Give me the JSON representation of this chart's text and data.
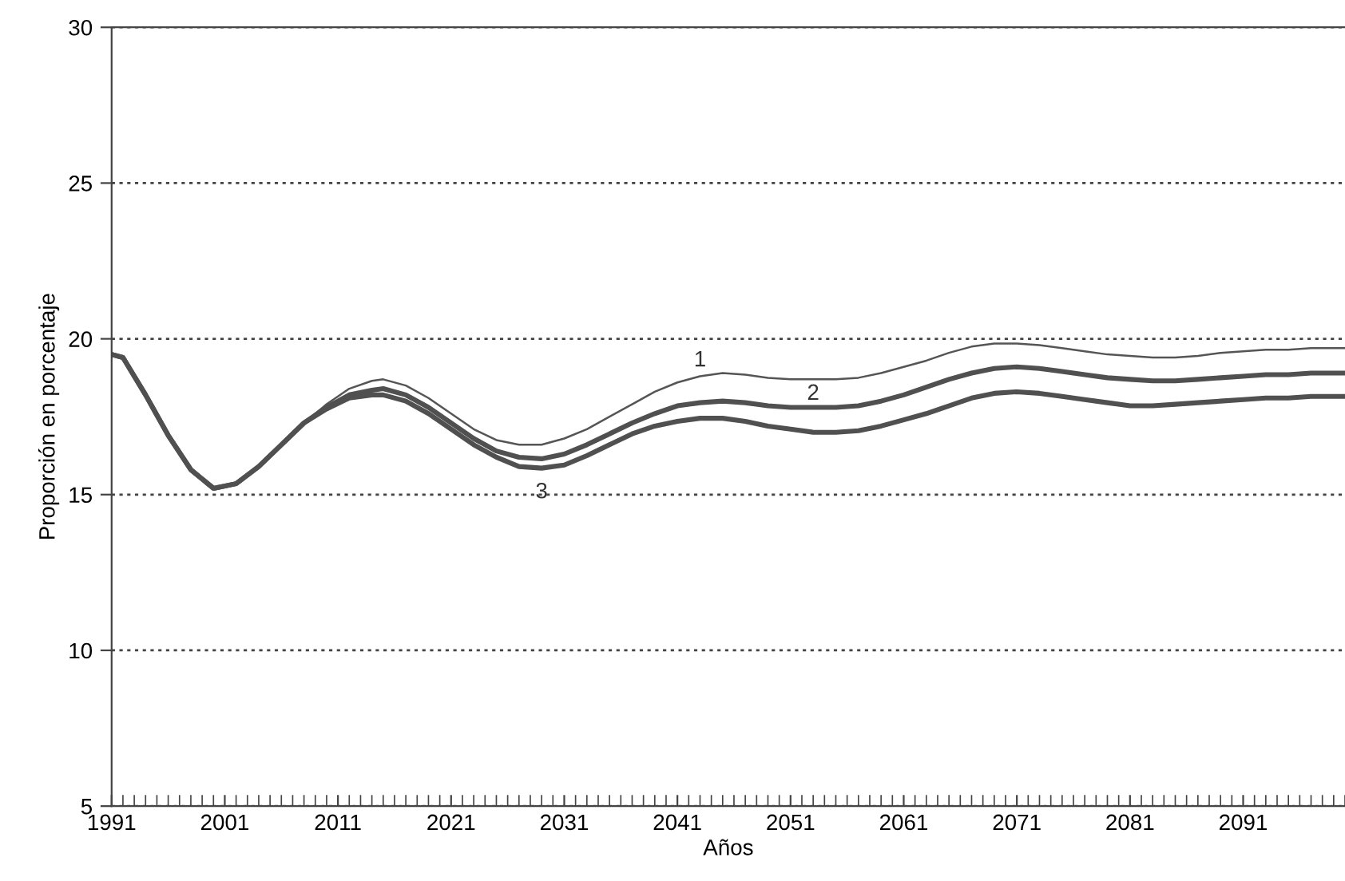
{
  "chart_data": {
    "type": "line",
    "xlabel": "Años",
    "ylabel": "Proporción en porcentaje",
    "x": [
      1991,
      1992,
      1994,
      1996,
      1998,
      2000,
      2002,
      2004,
      2006,
      2008,
      2010,
      2012,
      2014,
      2015,
      2017,
      2019,
      2021,
      2023,
      2025,
      2027,
      2029,
      2031,
      2033,
      2035,
      2037,
      2039,
      2041,
      2043,
      2045,
      2047,
      2049,
      2051,
      2053,
      2055,
      2057,
      2059,
      2061,
      2063,
      2065,
      2067,
      2069,
      2071,
      2073,
      2075,
      2077,
      2079,
      2081,
      2083,
      2085,
      2087,
      2089,
      2091,
      2093,
      2095,
      2097,
      2099,
      2100
    ],
    "series": [
      {
        "name": "1",
        "color": "#555555",
        "values": [
          19.5,
          19.4,
          18.2,
          16.9,
          15.8,
          15.2,
          15.35,
          15.9,
          16.6,
          17.3,
          17.9,
          18.4,
          18.65,
          18.7,
          18.5,
          18.1,
          17.6,
          17.1,
          16.75,
          16.6,
          16.6,
          16.8,
          17.1,
          17.5,
          17.9,
          18.3,
          18.6,
          18.8,
          18.9,
          18.85,
          18.75,
          18.7,
          18.7,
          18.7,
          18.75,
          18.9,
          19.1,
          19.3,
          19.55,
          19.75,
          19.85,
          19.85,
          19.8,
          19.7,
          19.6,
          19.5,
          19.45,
          19.4,
          19.4,
          19.45,
          19.55,
          19.6,
          19.65,
          19.65,
          19.7,
          19.7,
          19.7
        ]
      },
      {
        "name": "2",
        "color": "#505050",
        "values": [
          19.5,
          19.4,
          18.2,
          16.9,
          15.8,
          15.2,
          15.35,
          15.9,
          16.6,
          17.3,
          17.8,
          18.2,
          18.35,
          18.4,
          18.2,
          17.8,
          17.3,
          16.8,
          16.4,
          16.2,
          16.15,
          16.3,
          16.6,
          16.95,
          17.3,
          17.6,
          17.85,
          17.95,
          18.0,
          17.95,
          17.85,
          17.8,
          17.8,
          17.8,
          17.85,
          18.0,
          18.2,
          18.45,
          18.7,
          18.9,
          19.05,
          19.1,
          19.05,
          18.95,
          18.85,
          18.75,
          18.7,
          18.65,
          18.65,
          18.7,
          18.75,
          18.8,
          18.85,
          18.85,
          18.9,
          18.9,
          18.9
        ]
      },
      {
        "name": "3",
        "color": "#505050",
        "values": [
          19.5,
          19.4,
          18.2,
          16.9,
          15.8,
          15.2,
          15.35,
          15.9,
          16.6,
          17.3,
          17.75,
          18.1,
          18.2,
          18.2,
          18.0,
          17.6,
          17.1,
          16.6,
          16.2,
          15.9,
          15.85,
          15.95,
          16.25,
          16.6,
          16.95,
          17.2,
          17.35,
          17.45,
          17.45,
          17.35,
          17.2,
          17.1,
          17.0,
          17.0,
          17.05,
          17.2,
          17.4,
          17.6,
          17.85,
          18.1,
          18.25,
          18.3,
          18.25,
          18.15,
          18.05,
          17.95,
          17.85,
          17.85,
          17.9,
          17.95,
          18.0,
          18.05,
          18.1,
          18.1,
          18.15,
          18.15,
          18.15
        ]
      }
    ],
    "xlim": [
      1991,
      2100
    ],
    "xticks": [
      1991,
      2001,
      2011,
      2021,
      2031,
      2041,
      2051,
      2061,
      2071,
      2081,
      2091
    ],
    "ylim": [
      5,
      30
    ],
    "yticks": [
      5,
      10,
      15,
      20,
      25,
      30
    ],
    "grid": "y",
    "line_style": "solid",
    "marker": "none",
    "legend": false
  }
}
